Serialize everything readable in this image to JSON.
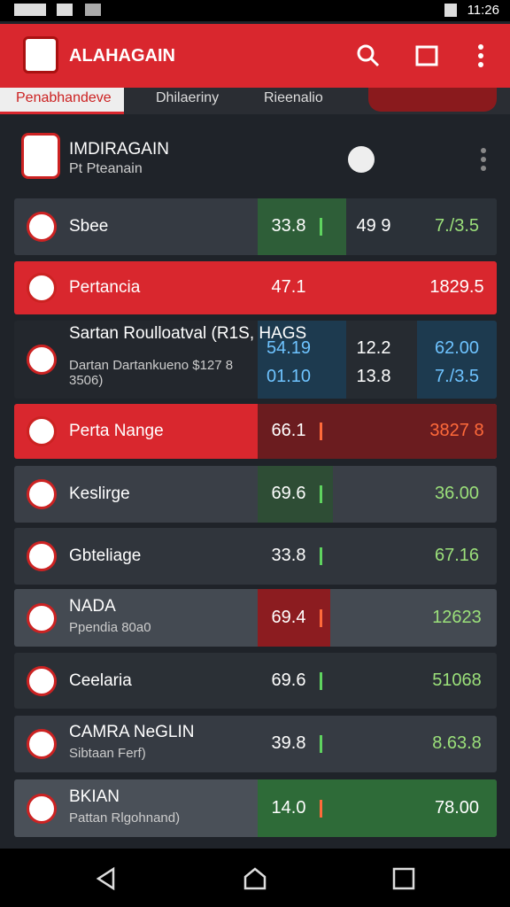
{
  "status_bar": {
    "time": "11:26"
  },
  "app_bar": {
    "title": "ALAHAGAIN"
  },
  "tabs": [
    "Penabhandeve",
    "Dhilaeriny",
    "Rieenalio"
  ],
  "header_card": {
    "title": "IMDIRAGAIN",
    "subtitle": "Pt Pteanain"
  },
  "rows": [
    {
      "name": "Sbee",
      "values": [
        "33.8",
        "49 9",
        "7./3.5"
      ]
    },
    {
      "name": "Pertancia",
      "values": [
        "47.1",
        "1829.5"
      ]
    },
    {
      "name": "Sartan Roulloatval (R1S, HAGS",
      "sub": "Dartan Dartankueno $127 8 3506)",
      "values": [
        "54.19",
        "12.2",
        "62.00"
      ],
      "values2": [
        "01.10",
        "13.8",
        "7./3.5"
      ]
    },
    {
      "name": "Perta Nange",
      "values": [
        "66.1",
        "3827 8"
      ]
    },
    {
      "name": "Keslirge",
      "values": [
        "69.6",
        "36.00"
      ]
    },
    {
      "name": "Gbteliage",
      "values": [
        "33.8",
        "67.16"
      ]
    },
    {
      "name": "NADA",
      "sub": "Ppendia 80a0",
      "values": [
        "69.4",
        "12623"
      ]
    },
    {
      "name": "Ceelaria",
      "values": [
        "69.6",
        "51068"
      ]
    },
    {
      "name": "CAMRA NeGLIN",
      "sub": "Sibtaan Ferf)",
      "values": [
        "39.8",
        "8.63.8"
      ]
    },
    {
      "name": "BKIAN",
      "sub": "Pattan Rlgohnand)",
      "values": [
        "14.0",
        "78.00"
      ]
    }
  ]
}
